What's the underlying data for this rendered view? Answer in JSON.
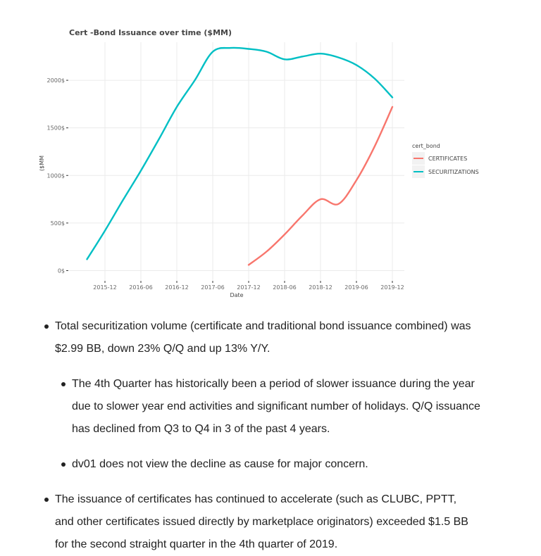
{
  "chart_data": {
    "type": "line",
    "title": "Cert -Bond Issuance over time ($MM)",
    "xlabel": "Date",
    "ylabel": "($MM",
    "x_ticks": [
      "2015-12",
      "2016-06",
      "2016-12",
      "2017-06",
      "2017-12",
      "2018-06",
      "2018-12",
      "2019-06",
      "2019-12"
    ],
    "y_ticks": [
      "0$",
      "500$",
      "1000$",
      "1500$",
      "2000$"
    ],
    "ylim": [
      -100,
      2400
    ],
    "xlim": [
      "2015-06",
      "2020-02"
    ],
    "grid": true,
    "legend": {
      "title": "cert_bond",
      "position": "right",
      "entries": [
        "CERTIFICATES",
        "SECURITIZATIONS"
      ]
    },
    "series": [
      {
        "name": "CERTIFICATES",
        "color": "#f8766d",
        "points": [
          [
            "2017-12",
            60
          ],
          [
            "2018-03",
            200
          ],
          [
            "2018-06",
            380
          ],
          [
            "2018-09",
            580
          ],
          [
            "2018-12",
            750
          ],
          [
            "2019-03",
            700
          ],
          [
            "2019-06",
            950
          ],
          [
            "2019-09",
            1300
          ],
          [
            "2019-12",
            1720
          ]
        ]
      },
      {
        "name": "SECURITIZATIONS",
        "color": "#00bfc4",
        "points": [
          [
            "2015-09",
            120
          ],
          [
            "2015-12",
            420
          ],
          [
            "2016-03",
            740
          ],
          [
            "2016-06",
            1050
          ],
          [
            "2016-09",
            1380
          ],
          [
            "2016-12",
            1720
          ],
          [
            "2017-03",
            2000
          ],
          [
            "2017-06",
            2300
          ],
          [
            "2017-09",
            2340
          ],
          [
            "2017-12",
            2330
          ],
          [
            "2018-03",
            2300
          ],
          [
            "2018-06",
            2220
          ],
          [
            "2018-09",
            2250
          ],
          [
            "2018-12",
            2280
          ],
          [
            "2019-03",
            2240
          ],
          [
            "2019-06",
            2160
          ],
          [
            "2019-09",
            2020
          ],
          [
            "2019-12",
            1820
          ]
        ]
      }
    ]
  },
  "text": {
    "bullet1": "Total securitization volume (certificate and traditional bond issuance combined) was $2.99 BB, down 23% Q/Q and up 13% Y/Y.",
    "sub1": "The 4th Quarter has historically been a period of slower issuance during the year due to slower year end activities and significant number of holidays. Q/Q issuance has declined from Q3 to Q4 in 3 of the past 4 years.",
    "sub2": "dv01 does not view the decline as cause for major concern.",
    "bullet2": "The issuance of certificates has continued to accelerate (such as CLUBC, PPTT, and other certificates issued directly by marketplace originators) exceeded $1.5 BB for the second straight quarter in the 4th quarter of 2019."
  }
}
